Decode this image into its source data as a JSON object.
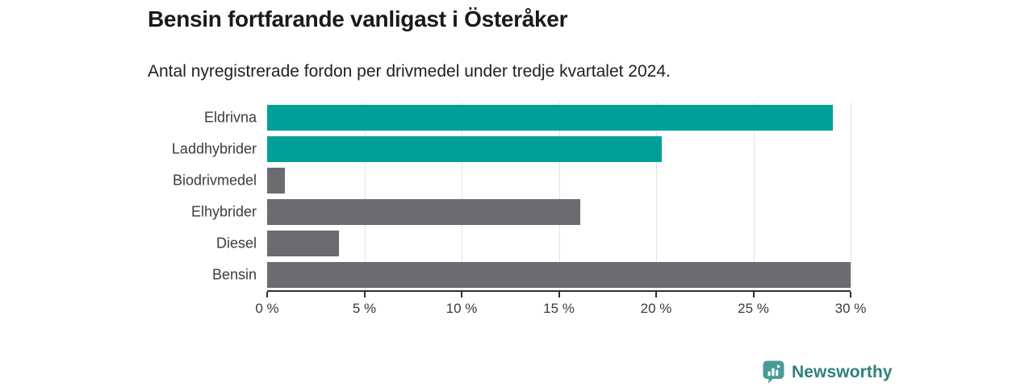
{
  "title": "Bensin fortfarande vanligast i Österåker",
  "subtitle": "Antal nyregistrerade fordon per drivmedel under tredje kvartalet 2024.",
  "chart_data": {
    "type": "bar",
    "orientation": "horizontal",
    "title": "Bensin fortfarande vanligast i Österåker",
    "subtitle": "Antal nyregistrerade fordon per drivmedel under tredje kvartalet 2024.",
    "categories": [
      "Eldrivna",
      "Laddhybrider",
      "Biodrivmedel",
      "Elhybrider",
      "Diesel",
      "Bensin"
    ],
    "values": [
      29.1,
      20.3,
      0.9,
      16.1,
      3.7,
      30.0
    ],
    "unit": "%",
    "bar_colors": [
      "#00a098",
      "#00a098",
      "#6b6b70",
      "#6b6b70",
      "#6b6b70",
      "#6b6b70"
    ],
    "xlabel": "",
    "ylabel": "",
    "xlim": [
      0,
      30
    ],
    "x_ticks": [
      0,
      5,
      10,
      15,
      20,
      25,
      30
    ],
    "x_tick_labels": [
      "0 %",
      "5 %",
      "10 %",
      "15 %",
      "20 %",
      "25 %",
      "30 %"
    ],
    "grid": "vertical-gridlines-at-ticks-excluding-zero",
    "legend": "none"
  },
  "colors": {
    "accent_teal": "#00a098",
    "bar_gray": "#6b6b70",
    "gridline": "#e2e2e2",
    "axis": "#2f2f2f",
    "label_text": "#3b3b3b",
    "title_text": "#1a1a1a"
  },
  "branding": {
    "name": "Newsworthy",
    "icon": "newsworthy-speech-bubble-bar-chart-icon",
    "icon_color": "#4b9b95",
    "text_color": "#2e807c"
  }
}
